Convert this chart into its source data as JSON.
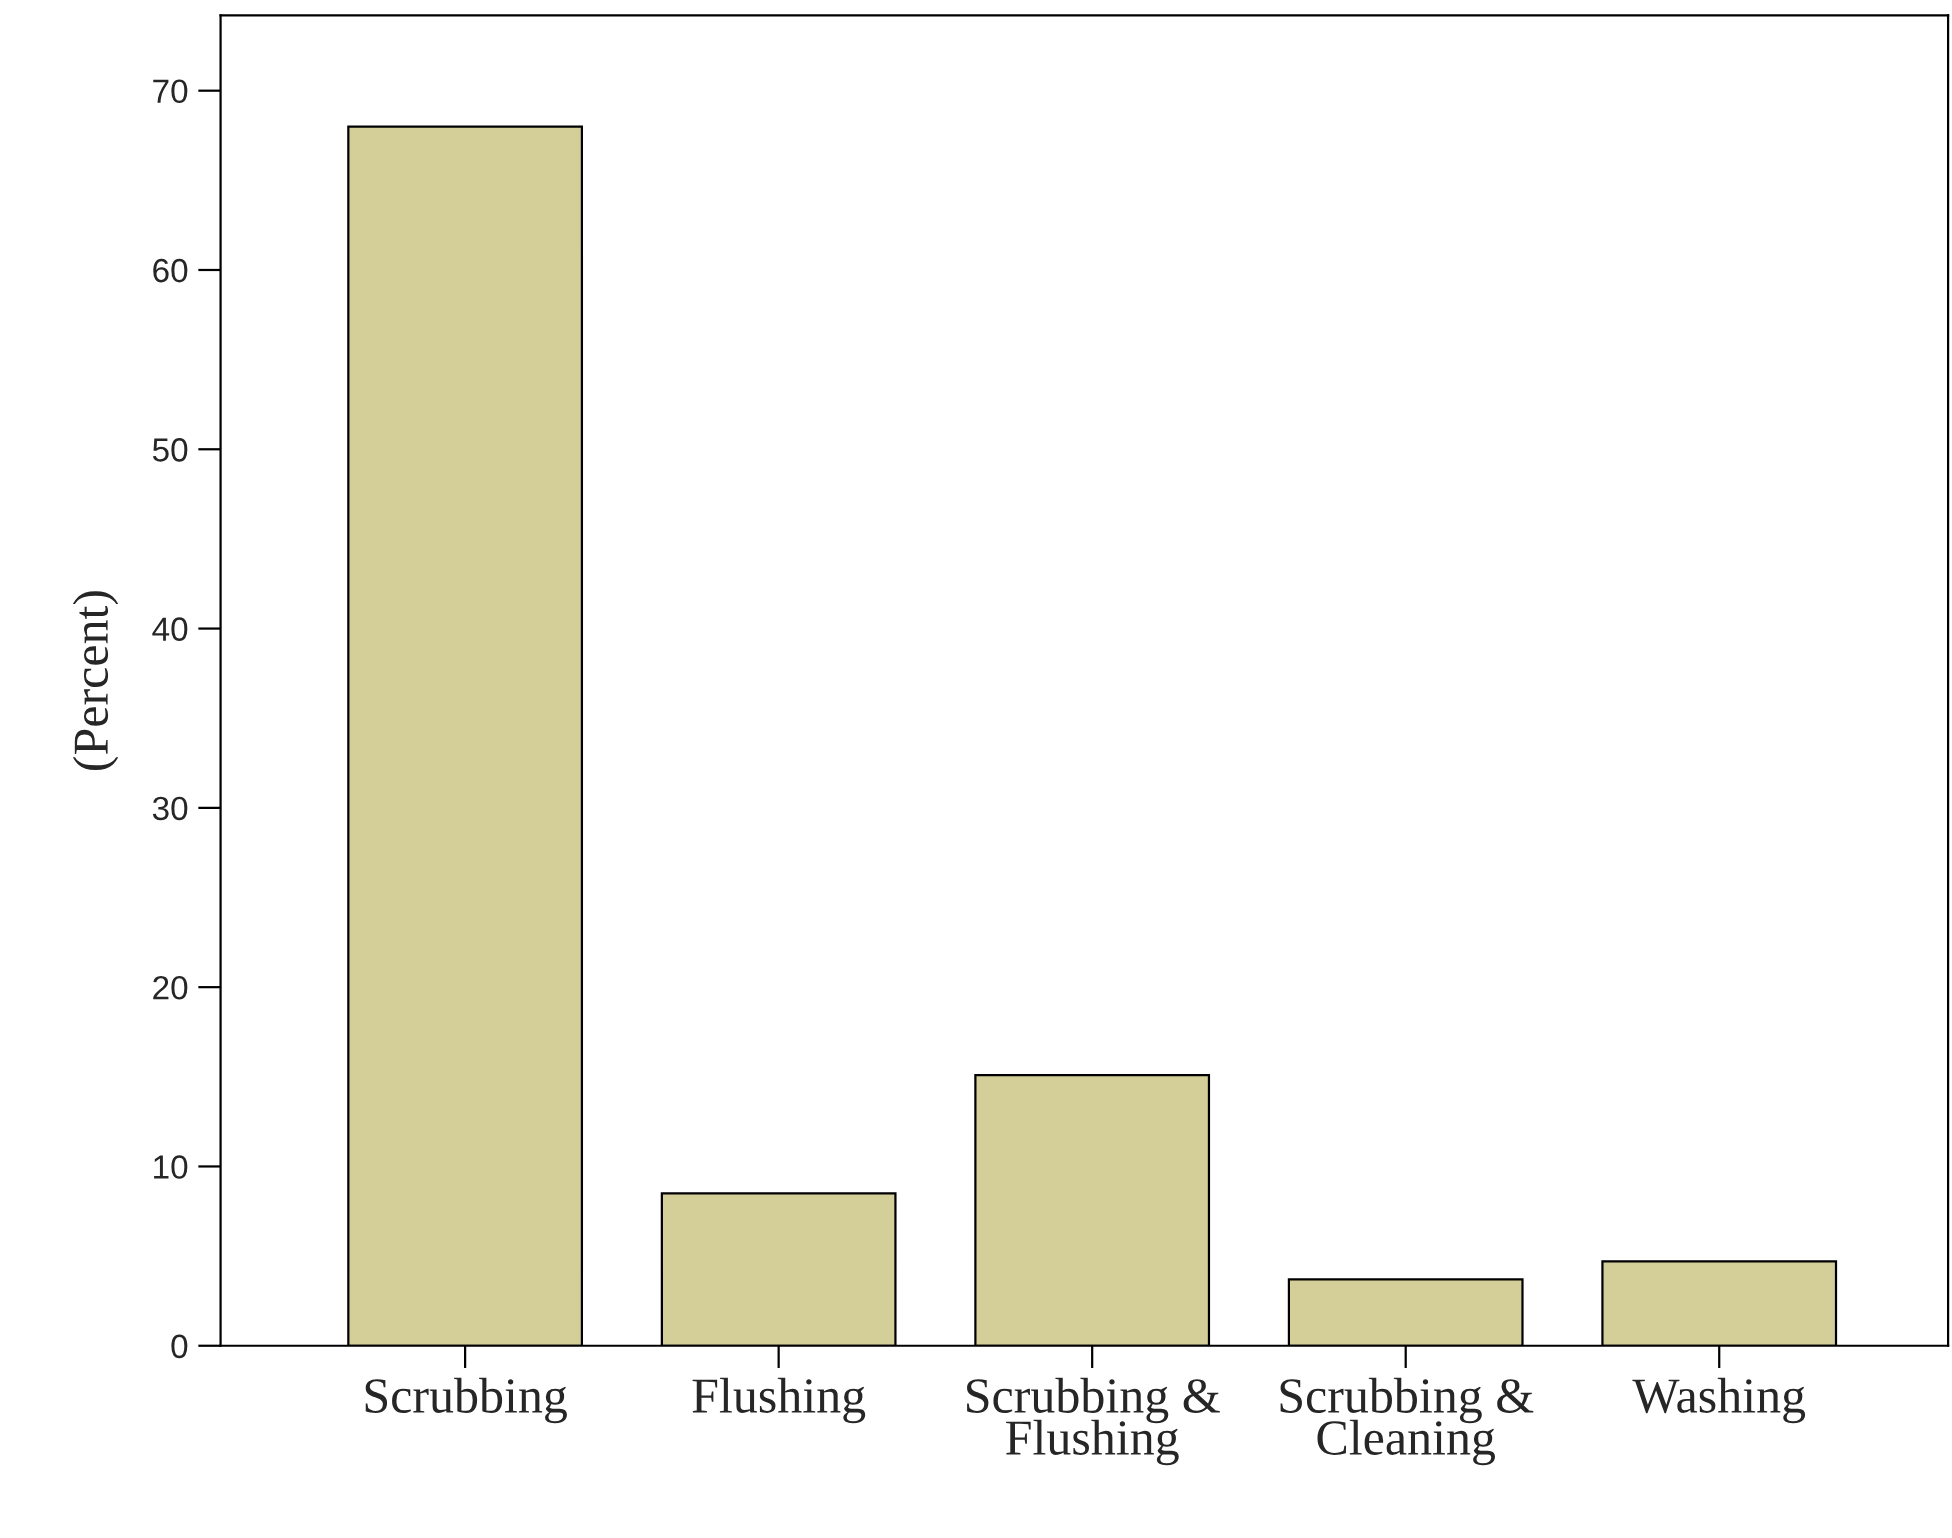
{
  "chart_data": {
    "type": "bar",
    "ylabel": "(Percent)",
    "categories": [
      "Scrubbing",
      "Flushing",
      "Scrubbing &\nFlushing",
      "Scrubbing &\nCleaning",
      "Washing"
    ],
    "values": [
      68,
      8.5,
      15.1,
      3.7,
      4.7
    ],
    "color": "#d4cf98",
    "ylim": [
      0,
      74.2
    ],
    "yticks": [
      0,
      10,
      20,
      30,
      40,
      50,
      60,
      70
    ],
    "grid": false
  }
}
